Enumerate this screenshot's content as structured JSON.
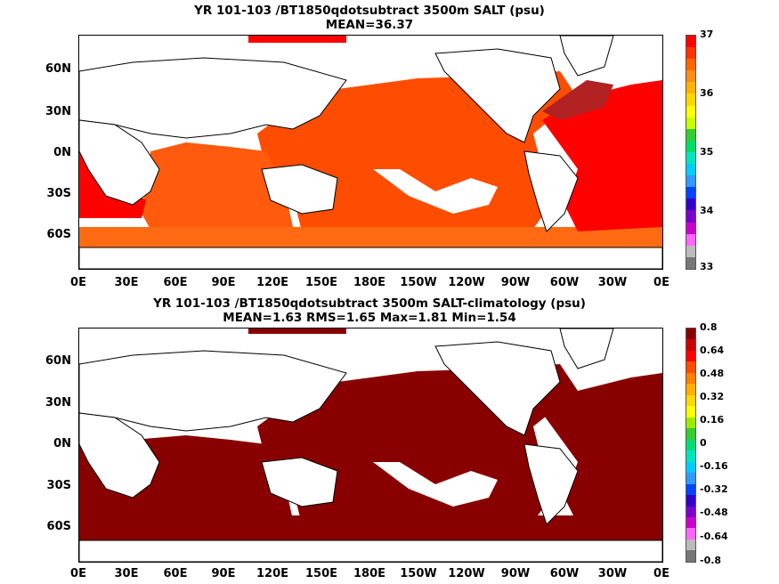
{
  "top_panel": {
    "title": "YR 101-103 /BT1850qdotsubtract 3500m SALT (psu)",
    "subtitle": "MEAN=36.37",
    "lat_labels": [
      "60N",
      "30N",
      "0N",
      "30S",
      "60S"
    ],
    "lon_labels": [
      "0E",
      "30E",
      "60E",
      "90E",
      "120E",
      "150E",
      "180E",
      "150W",
      "120W",
      "90W",
      "60W",
      "30W",
      "0E"
    ],
    "colorbar_labels": [
      "37",
      "36",
      "35",
      "34",
      "33"
    ],
    "colorbar_colors": [
      "#ff0000",
      "#ff3300",
      "#ff6600",
      "#ff8c1a",
      "#ffb300",
      "#ffd700",
      "#ffff00",
      "#c8ff00",
      "#33cc33",
      "#00dd66",
      "#00e5c0",
      "#00ccff",
      "#3399ff",
      "#0044ff",
      "#3300cc",
      "#7a00cc",
      "#cc00cc",
      "#ff66ff",
      "#bbbbbb",
      "#777777"
    ]
  },
  "bottom_panel": {
    "title": "YR 101-103 /BT1850qdotsubtract 3500m SALT-climatology (psu)",
    "subtitle": "MEAN=1.63   RMS=1.65   Max=1.81   Min=1.54",
    "lat_labels": [
      "60N",
      "30N",
      "0N",
      "30S",
      "60S"
    ],
    "lon_labels": [
      "0E",
      "30E",
      "60E",
      "90E",
      "120E",
      "150E",
      "180E",
      "150W",
      "120W",
      "90W",
      "60W",
      "30W",
      "0E"
    ],
    "colorbar_labels": [
      "0.8",
      "0.64",
      "0.48",
      "0.32",
      "0.16",
      "0",
      "-0.16",
      "-0.32",
      "-0.48",
      "-0.64",
      "-0.8"
    ],
    "colorbar_colors": [
      "#880000",
      "#cc0000",
      "#ff0000",
      "#ff4d00",
      "#ff8000",
      "#ffb000",
      "#ffd700",
      "#ffff00",
      "#99ee00",
      "#33cc33",
      "#00dd77",
      "#00e5c0",
      "#00ccff",
      "#3399ff",
      "#0044ff",
      "#3300cc",
      "#7a00cc",
      "#cc00cc",
      "#ff66ff",
      "#bbbbbb",
      "#777777"
    ]
  },
  "colors": {
    "top_ocean_main": "#ff4d00",
    "top_ocean_secondary": "#ff6a13",
    "top_ocean_high": "#ff0000",
    "top_ocean_max": "#b22222",
    "bottom_ocean": "#880000"
  }
}
